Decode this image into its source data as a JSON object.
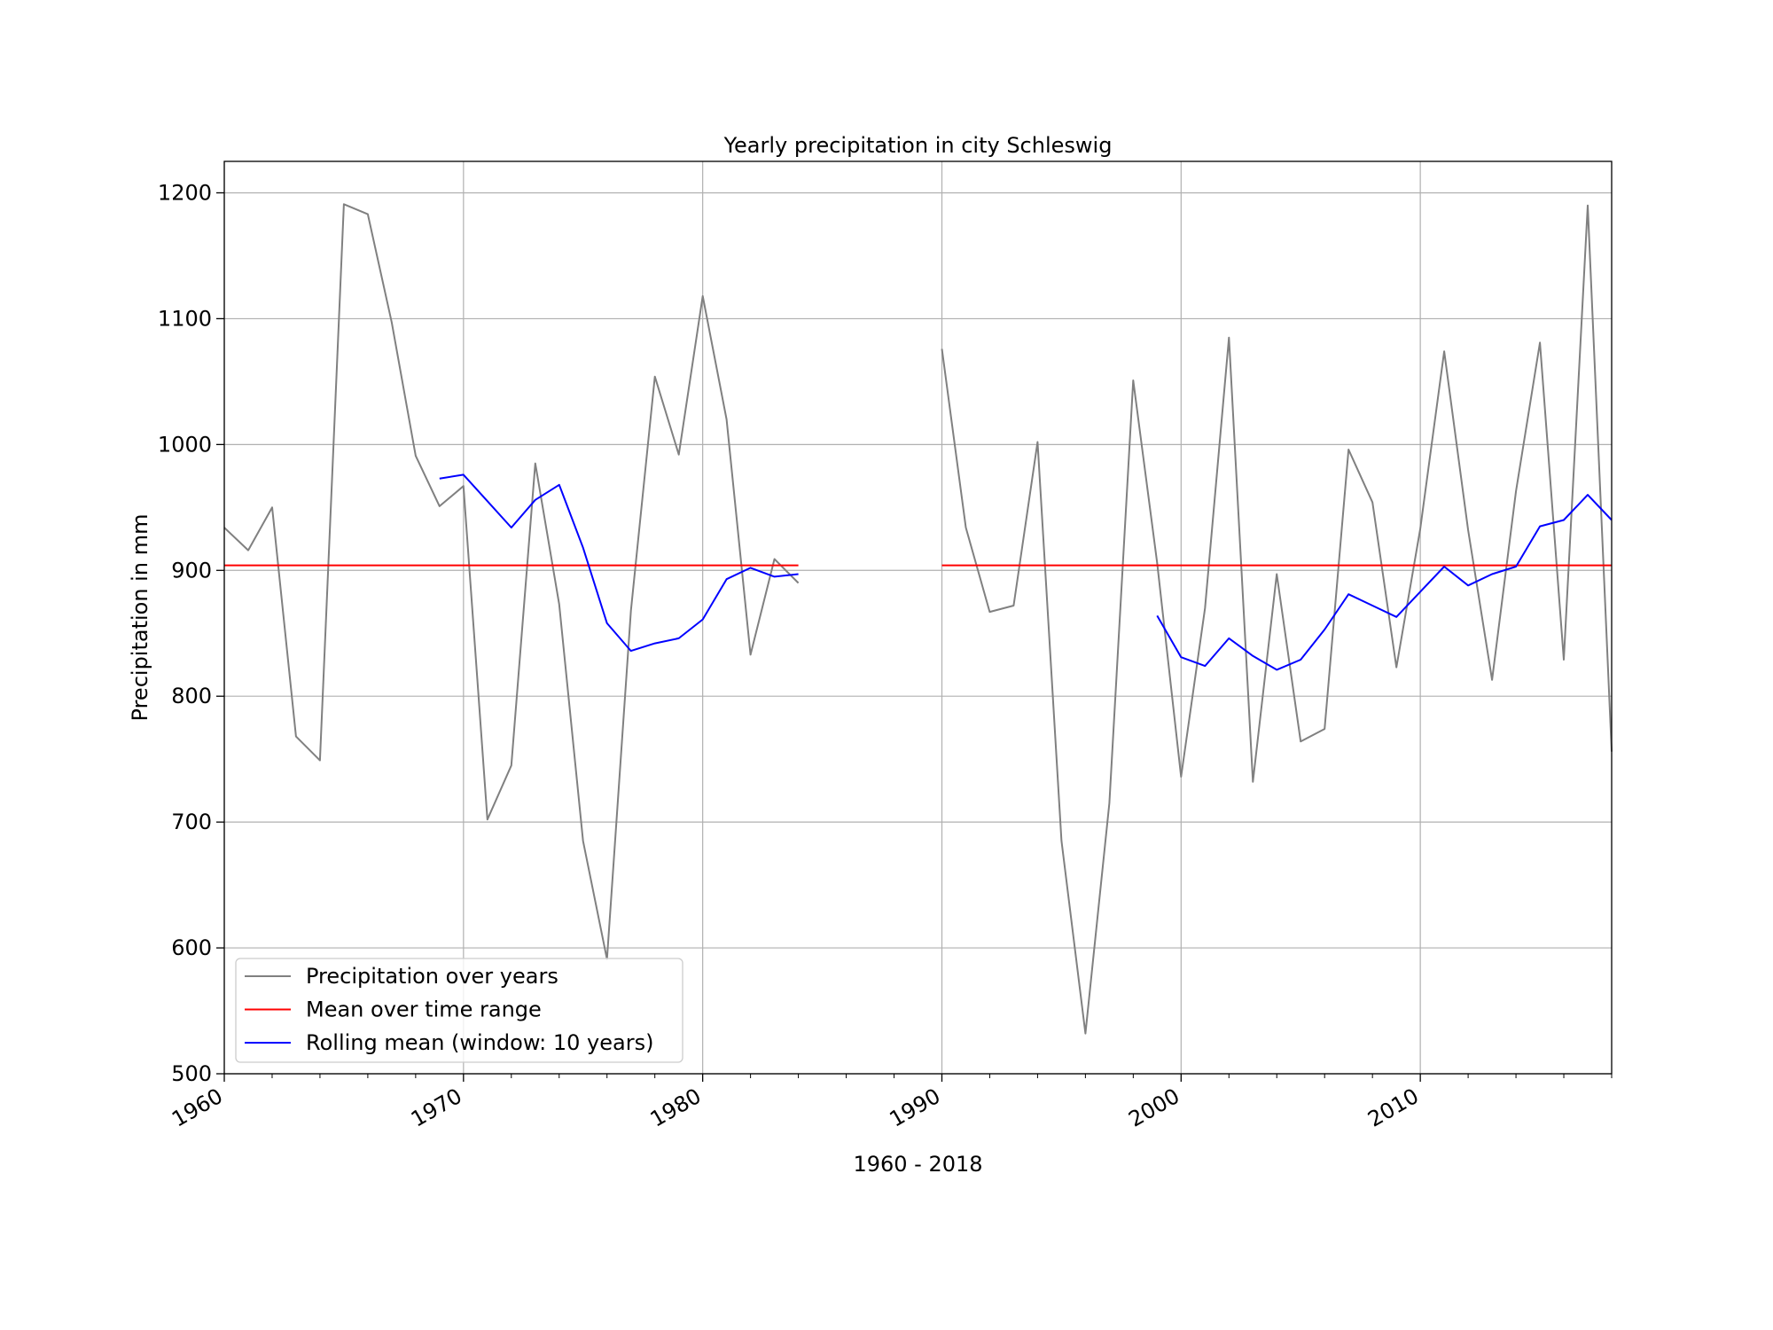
{
  "chart_data": {
    "type": "line",
    "title": "Yearly precipitation in city Schleswig",
    "xlabel": "1960 - 2018",
    "ylabel": "Precipitation in mm",
    "xlim": [
      1960,
      2018
    ],
    "ylim": [
      500,
      1225
    ],
    "x_ticks": [
      1960,
      1970,
      1980,
      1990,
      2000,
      2010
    ],
    "x_tick_labels": [
      "1960",
      "1970",
      "1980",
      "1990",
      "2000",
      "2010"
    ],
    "y_ticks": [
      500,
      600,
      700,
      800,
      900,
      1000,
      1100,
      1200
    ],
    "y_tick_labels": [
      "500",
      "600",
      "700",
      "800",
      "900",
      "1000",
      "1100",
      "1200"
    ],
    "grid": true,
    "legend_position": "lower-left",
    "series": [
      {
        "name": "Precipitation over years",
        "color": "#808080",
        "segments": [
          {
            "x": [
              1960,
              1961,
              1962,
              1963,
              1964,
              1965,
              1966,
              1967,
              1968,
              1969,
              1970,
              1971,
              1972,
              1973,
              1974,
              1975,
              1976,
              1977,
              1978,
              1979,
              1980,
              1981,
              1982,
              1983,
              1984
            ],
            "y": [
              934,
              916,
              950,
              768,
              749,
              1191,
              1183,
              1097,
              991,
              951,
              967,
              702,
              745,
              985,
              873,
              685,
              591,
              868,
              1054,
              992,
              1118,
              1020,
              833,
              909,
              890
            ]
          },
          {
            "x": [
              1990,
              1991,
              1992,
              1993,
              1994,
              1995,
              1996,
              1997,
              1998,
              1999,
              2000,
              2001,
              2002,
              2003,
              2004,
              2005,
              2006,
              2007,
              2008,
              2009,
              2010,
              2011,
              2012,
              2013,
              2014,
              2015,
              2016,
              2017,
              2018
            ],
            "y": [
              1076,
              934,
              867,
              872,
              1002,
              685,
              532,
              715,
              1051,
              906,
              736,
              870,
              1085,
              732,
              897,
              764,
              774,
              996,
              954,
              823,
              933,
              1074,
              932,
              813,
              963,
              1081,
              829,
              1190,
              756
            ]
          }
        ]
      },
      {
        "name": "Mean over time range",
        "color": "#ff0000",
        "segments": [
          {
            "x": [
              1960,
              1984
            ],
            "y": [
              904,
              904
            ]
          },
          {
            "x": [
              1990,
              2018
            ],
            "y": [
              904,
              904
            ]
          }
        ]
      },
      {
        "name": "Rolling mean (window: 10 years)",
        "color": "#0000ff",
        "segments": [
          {
            "x": [
              1969,
              1970,
              1971,
              1972,
              1973,
              1974,
              1975,
              1976,
              1977,
              1978,
              1979,
              1980,
              1981,
              1982,
              1983,
              1984
            ],
            "y": [
              973,
              976,
              955,
              934,
              956,
              968,
              918,
              858,
              836,
              842,
              846,
              861,
              893,
              902,
              895,
              897
            ]
          },
          {
            "x": [
              1999,
              2000,
              2001,
              2002,
              2003,
              2004,
              2005,
              2006,
              2007,
              2008,
              2009,
              2010,
              2011,
              2012,
              2013,
              2014,
              2015,
              2016,
              2017,
              2018
            ],
            "y": [
              864,
              831,
              824,
              846,
              832,
              821,
              829,
              853,
              881,
              872,
              863,
              883,
              903,
              888,
              897,
              903,
              935,
              940,
              960,
              940
            ]
          }
        ]
      }
    ]
  }
}
